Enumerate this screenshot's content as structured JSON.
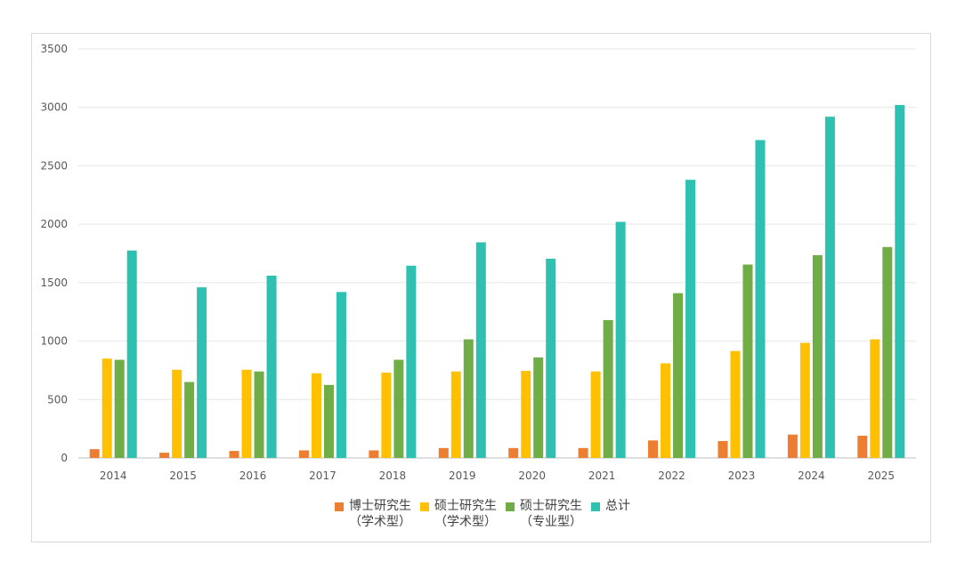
{
  "chart_data": {
    "type": "bar",
    "categories": [
      "2014",
      "2015",
      "2016",
      "2017",
      "2018",
      "2019",
      "2020",
      "2021",
      "2022",
      "2023",
      "2024",
      "2025"
    ],
    "ylim": [
      0,
      3500
    ],
    "yticks": [
      0,
      500,
      1000,
      1500,
      2000,
      2500,
      3000,
      3500
    ],
    "grid": true,
    "legend_position": "bottom",
    "series": [
      {
        "name": "博士研究生\n（学术型）",
        "color": "#ed7d31",
        "values": [
          75,
          45,
          60,
          65,
          65,
          85,
          85,
          85,
          150,
          145,
          200,
          190
        ]
      },
      {
        "name": "硕士研究生\n（学术型）",
        "color": "#ffc000",
        "values": [
          850,
          755,
          755,
          725,
          730,
          740,
          745,
          740,
          810,
          915,
          985,
          1015
        ]
      },
      {
        "name": "硕士研究生\n（专业型）",
        "color": "#70ad47",
        "values": [
          840,
          650,
          740,
          625,
          840,
          1015,
          860,
          1180,
          1410,
          1655,
          1735,
          1805
        ]
      },
      {
        "name": "总计",
        "color": "#2ec0b1",
        "values": [
          1775,
          1460,
          1560,
          1420,
          1645,
          1845,
          1705,
          2020,
          2380,
          2720,
          2920,
          3020
        ]
      }
    ]
  }
}
